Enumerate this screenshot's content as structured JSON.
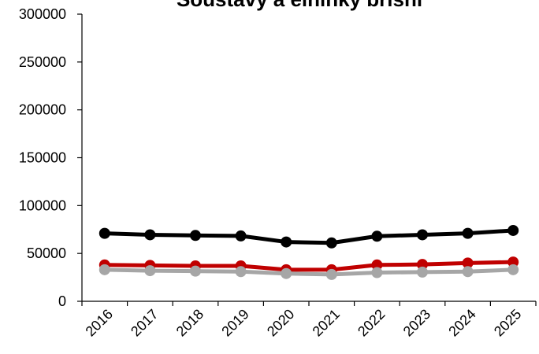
{
  "chart_data": {
    "type": "line",
    "title": "Soustavy a elninky břišní",
    "categories": [
      "2016",
      "2017",
      "2018",
      "2019",
      "2020",
      "2021",
      "2022",
      "2023",
      "2024",
      "2025"
    ],
    "ylim": [
      0,
      300000
    ],
    "yticks": [
      0,
      50000,
      100000,
      150000,
      200000,
      250000,
      300000
    ],
    "ytick_labels": [
      "0",
      "50000",
      "100000",
      "150000",
      "200000",
      "250000",
      "300000"
    ],
    "grid": false,
    "legend": "none",
    "series": [
      {
        "color": "#000000",
        "values": [
          71000,
          69500,
          68800,
          68300,
          62000,
          61000,
          68000,
          69500,
          71000,
          74000
        ]
      },
      {
        "color": "#c00000",
        "values": [
          38000,
          37500,
          37000,
          37000,
          33000,
          33000,
          38000,
          38500,
          40000,
          41000
        ]
      },
      {
        "color": "#a6a6a6",
        "values": [
          33000,
          32000,
          31500,
          31000,
          29000,
          28000,
          30000,
          30500,
          31000,
          33000
        ]
      }
    ]
  }
}
